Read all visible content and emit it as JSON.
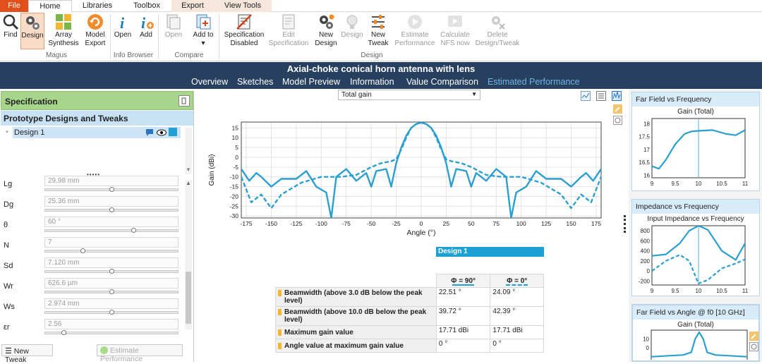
{
  "menu": {
    "file": "File",
    "home": "Home",
    "libraries": "Libraries",
    "toolbox": "Toolbox",
    "export": "Export",
    "view_tools": "View Tools"
  },
  "ribbon": {
    "find": "Find",
    "design": "Design",
    "array_synthesis": "Array Synthesis",
    "model_export": "Model Export",
    "group_magus": "Magus",
    "open": "Open",
    "add": "Add",
    "group_info": "Info Browser",
    "open2": "Open",
    "add_to": "Add to ▾",
    "group_compare": "Compare",
    "spec_disabled": "Specification Disabled",
    "edit_spec": "Edit Specification",
    "new_design": "New Design",
    "design2": "Design",
    "new_tweak": "New Tweak",
    "estimate": "Estimate Performance",
    "calc_nfs": "Calculate NFS now",
    "delete": "Delete Design/Tweak",
    "group_design": "Design"
  },
  "title": "Axial-choke conical horn antenna with lens",
  "nav": [
    "Overview",
    "Sketches",
    "Model Preview",
    "Information",
    "Value Comparison",
    "Estimated Performance"
  ],
  "left": {
    "spec_title": "Specification",
    "proto_title": "Prototype Designs and Tweaks",
    "design_item": "Design 1",
    "dots": "•••••",
    "params": [
      {
        "label": "Lg",
        "value": "29.98 mm",
        "pos": 0.5
      },
      {
        "label": "Dg",
        "value": "25.36 mm",
        "pos": 0.5
      },
      {
        "label": "θ",
        "value": "60 °",
        "pos": 0.67
      },
      {
        "label": "N",
        "value": "7",
        "pos": 0.28
      },
      {
        "label": "Sd",
        "value": "7.120 mm",
        "pos": 0.5
      },
      {
        "label": "Wr",
        "value": "626.6 µm",
        "pos": 0.5
      },
      {
        "label": "Ws",
        "value": "2.974 mm",
        "pos": 0.5
      },
      {
        "label": "εr",
        "value": "2.56",
        "pos": 0.13
      }
    ],
    "new_tweak": "New Tweak",
    "estimate": "Estimate Performance"
  },
  "center": {
    "dropdown": "Total gain",
    "table": {
      "design": "Design 1",
      "col1": "Φ = 90°",
      "col2": "Φ = 0°",
      "rows": [
        {
          "label": "Beamwidth (above 3.0 dB below the peak level)",
          "v1": "22.51 °",
          "v2": "24.09 °"
        },
        {
          "label": "Beamwidth (above 10.0 dB below the peak level)",
          "v1": "39.72 °",
          "v2": "42.39 °"
        },
        {
          "label": "Maximum gain value",
          "v1": "17.71 dBi",
          "v2": "17.71 dBi"
        },
        {
          "label": "Angle value at maximum gain value",
          "v1": "0 °",
          "v2": "0 °"
        }
      ]
    }
  },
  "right": {
    "card1": {
      "header": "Far Field vs Frequency",
      "title": "Gain (Total)"
    },
    "card2": {
      "header": "Impedance vs Frequency",
      "title": "Input Impedance vs Frequency"
    },
    "card3": {
      "header": "Far Field vs Angle @ f0 [10 GHz]",
      "title": "Gain (Total)"
    }
  },
  "colors": {
    "accent": "#2a9fd0",
    "title_bg": "#27405f",
    "spec_bg": "#a7d58c",
    "file_bg": "#e0501b"
  },
  "chart_data": [
    {
      "type": "line",
      "title": "",
      "xlabel": "Angle (°)",
      "ylabel": "Gain (dBi)",
      "xlim": [
        -180,
        180
      ],
      "ylim": [
        -31,
        18
      ],
      "xticks": [
        -175,
        -150,
        -125,
        -100,
        -75,
        -50,
        -25,
        0,
        25,
        50,
        75,
        100,
        125,
        150,
        175
      ],
      "yticks": [
        15,
        10,
        5,
        0,
        -5,
        -10,
        -15,
        -20,
        -25,
        -30
      ],
      "series": [
        {
          "name": "Φ = 90°",
          "style": "solid",
          "x": [
            -180,
            -172,
            -165,
            -160,
            -150,
            -140,
            -125,
            -115,
            -105,
            -95,
            -90,
            -85,
            -75,
            -65,
            -55,
            -50,
            -45,
            -35,
            -30,
            -25,
            -20,
            -15,
            -10,
            -5,
            0,
            5,
            10,
            15,
            20,
            25,
            30,
            35,
            45,
            50,
            55,
            65,
            75,
            85,
            90,
            95,
            105,
            115,
            125,
            140,
            150,
            160,
            165,
            172,
            180
          ],
          "y": [
            -6,
            -12,
            -8,
            -10,
            -15,
            -11,
            -11,
            -7,
            -15,
            -18,
            -31,
            -10,
            -6,
            -12,
            -8,
            -15,
            -7,
            -6,
            -15,
            -3,
            5,
            11,
            15,
            17,
            17.7,
            17,
            15,
            11,
            5,
            -3,
            -15,
            -6,
            -7,
            -15,
            -8,
            -12,
            -6,
            -10,
            -31,
            -18,
            -15,
            -7,
            -11,
            -11,
            -15,
            -10,
            -8,
            -12,
            -6
          ]
        },
        {
          "name": "Φ = 0°",
          "style": "dashed",
          "x": [
            -180,
            -170,
            -160,
            -150,
            -140,
            -120,
            -100,
            -80,
            -65,
            -50,
            -40,
            -30,
            -25,
            -20,
            -15,
            -10,
            -5,
            0,
            5,
            10,
            15,
            20,
            25,
            30,
            40,
            50,
            65,
            80,
            100,
            120,
            140,
            150,
            160,
            170,
            180
          ],
          "y": [
            -10,
            -23,
            -19,
            -26,
            -19,
            -13,
            -10,
            -10,
            -9,
            -5,
            -3,
            -2,
            -1,
            4,
            10,
            15,
            17,
            17.7,
            17,
            15,
            10,
            4,
            -1,
            -2,
            -3,
            -5,
            -9,
            -10,
            -10,
            -13,
            -19,
            -26,
            -19,
            -23,
            -10
          ]
        }
      ]
    },
    {
      "type": "line",
      "title": "Gain (Total)",
      "xlim": [
        9,
        11
      ],
      "ylim": [
        15.9,
        18.2
      ],
      "xticks": [
        "9",
        "9.5",
        "10",
        "10.5",
        "11"
      ],
      "yticks": [
        "18",
        "17.5",
        "17",
        "16.5",
        "16"
      ],
      "series": [
        {
          "x": [
            9,
            9.15,
            9.3,
            9.5,
            9.7,
            9.85,
            10,
            10.3,
            10.6,
            10.8,
            11
          ],
          "y": [
            16.35,
            16.25,
            16.6,
            17.2,
            17.6,
            17.7,
            17.72,
            17.75,
            17.6,
            17.55,
            17.75
          ]
        }
      ]
    },
    {
      "type": "line",
      "title": "Input Impedance vs Frequency",
      "xlim": [
        9,
        11
      ],
      "ylim": [
        -280,
        900
      ],
      "xticks": [
        "9",
        "9.5",
        "10",
        "10.5",
        "11"
      ],
      "yticks": [
        "800",
        "600",
        "400",
        "200",
        "0",
        "-200"
      ],
      "series": [
        {
          "style": "solid",
          "x": [
            9,
            9.3,
            9.6,
            9.8,
            10,
            10.2,
            10.5,
            10.8,
            11
          ],
          "y": [
            300,
            330,
            550,
            800,
            900,
            820,
            400,
            220,
            550
          ]
        },
        {
          "style": "dashed",
          "x": [
            9,
            9.3,
            9.6,
            9.8,
            10,
            10.2,
            10.5,
            10.8,
            11
          ],
          "y": [
            0,
            200,
            320,
            200,
            -250,
            -180,
            50,
            150,
            230
          ]
        }
      ]
    },
    {
      "type": "line",
      "title": "Gain (Total)",
      "yticks": [
        "10",
        "0"
      ],
      "series": [
        {
          "x": [
            -180,
            -60,
            -30,
            -15,
            0,
            15,
            30,
            60,
            180
          ],
          "y": [
            -10,
            -8,
            -5,
            10,
            17.7,
            10,
            -5,
            -8,
            -10
          ]
        }
      ]
    }
  ]
}
